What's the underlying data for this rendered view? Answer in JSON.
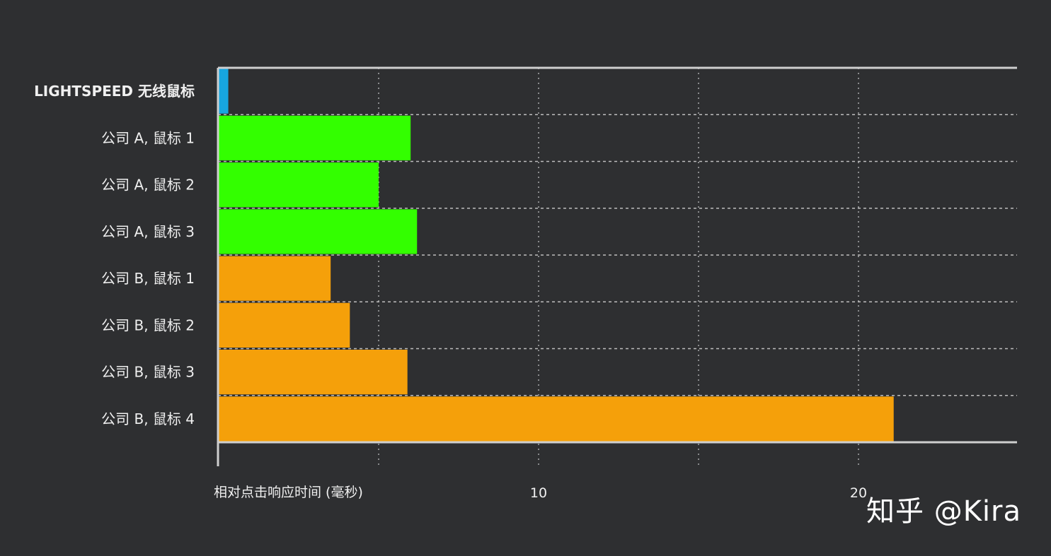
{
  "chart_data": {
    "type": "bar",
    "orientation": "horizontal",
    "categories": [
      "LIGHTSPEED 无线鼠标",
      "公司 A, 鼠标 1",
      "公司 A, 鼠标 2",
      "公司 A, 鼠标 3",
      "公司 B, 鼠标 1",
      "公司 B, 鼠标 2",
      "公司 B, 鼠标 3",
      "公司 B, 鼠标 4"
    ],
    "values": [
      0.3,
      6.0,
      5.0,
      6.2,
      3.5,
      4.1,
      5.9,
      21.1
    ],
    "colors": [
      "#17a6e0",
      "#33ff00",
      "#33ff00",
      "#33ff00",
      "#f5a00a",
      "#f5a00a",
      "#f5a00a",
      "#f5a00a"
    ],
    "xlabel": "相对点击响应时间 (毫秒)",
    "xticks": [
      10,
      20
    ],
    "xlim": [
      0,
      25
    ],
    "grid": true
  },
  "watermark": "知乎 @Kira"
}
